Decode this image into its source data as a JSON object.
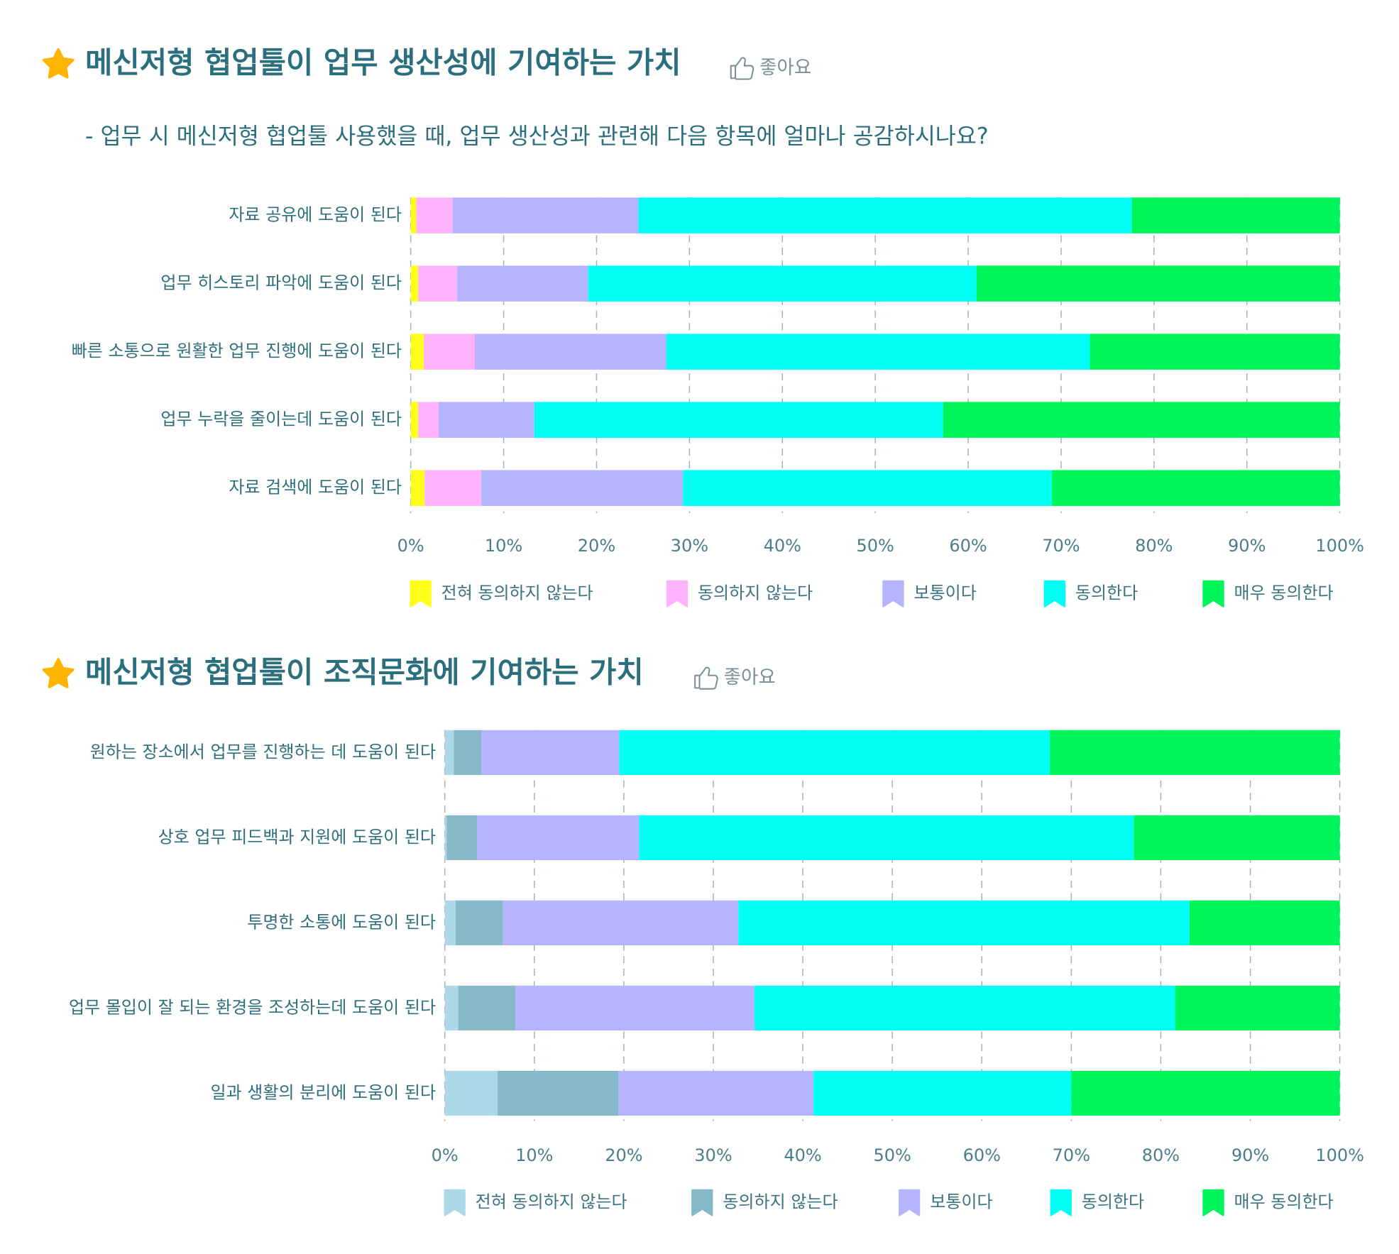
{
  "chart_data": [
    {
      "type": "stacked-bar-horizontal",
      "title": "메신저형 협업툴이 업무 생산성에 기여하는 가치",
      "badge": "좋아요",
      "subtitle": "- 업무 시 메신저형 협업툴 사용했을 때, 업무 생산성과 관련해 다음 항목에 얼마나 공감하시나요?",
      "categories": [
        "자료 공유에 도움이 된다",
        "업무 히스토리 파악에 도움이 된다",
        "빠른  소통으로 원활한 업무 진행에 도움이 된다",
        "업무 누락을 줄이는데 도움이 된다",
        "자료 검색에 도움이 된다"
      ],
      "series": [
        {
          "name": "전혀 동의하지 않는다",
          "color": "#ffff1a",
          "values": [
            0.6,
            0.8,
            1.4,
            0.8,
            1.5
          ]
        },
        {
          "name": "동의하지 않는다",
          "color": "#ffb3ff",
          "values": [
            3.9,
            4.2,
            5.5,
            2.2,
            6.1
          ]
        },
        {
          "name": "보통이다",
          "color": "#b6b3ff",
          "values": [
            20.0,
            14.1,
            20.6,
            10.3,
            21.7
          ]
        },
        {
          "name": "동의한다",
          "color": "#00fff5",
          "values": [
            53.1,
            41.8,
            45.6,
            44.0,
            39.7
          ]
        },
        {
          "name": "매우 동의한다",
          "color": "#00f55a",
          "values": [
            22.4,
            39.1,
            26.9,
            42.7,
            31.0
          ]
        }
      ],
      "xlim": [
        0,
        100
      ],
      "xticks": [
        {
          "value": 0,
          "label": "0%"
        },
        {
          "value": 10,
          "label": "10%"
        },
        {
          "value": 20,
          "label": "20%"
        },
        {
          "value": 30,
          "label": "30%"
        },
        {
          "value": 40,
          "label": "40%"
        },
        {
          "value": 50,
          "label": "50%"
        },
        {
          "value": 60,
          "label": "60%"
        },
        {
          "value": 70,
          "label": "70%"
        },
        {
          "value": 80,
          "label": "80%"
        },
        {
          "value": 90,
          "label": "90%"
        },
        {
          "value": 100,
          "label": "100%"
        }
      ],
      "grid": true
    },
    {
      "type": "stacked-bar-horizontal",
      "title": "메신저형 협업툴이 조직문화에 기여하는 가치",
      "badge": "좋아요",
      "categories": [
        "원하는 장소에서 업무를 진행하는 데 도움이 된다",
        "상호 업무 피드백과 지원에 도움이 된다",
        "투명한 소통에 도움이 된다",
        "업무 몰입이 잘 되는 환경을 조성하는데 도움이 된다",
        "일과 생활의 분리에 도움이 된다"
      ],
      "series": [
        {
          "name": "전혀 동의하지 않는다",
          "color": "#acd8e8",
          "values": [
            1.0,
            0.2,
            1.2,
            1.5,
            5.9
          ]
        },
        {
          "name": "동의하지 않는다",
          "color": "#85b8c8",
          "values": [
            3.1,
            3.4,
            5.3,
            6.4,
            13.5
          ]
        },
        {
          "name": "보통이다",
          "color": "#b6b3ff",
          "values": [
            15.4,
            18.1,
            26.3,
            26.7,
            21.8
          ]
        },
        {
          "name": "동의한다",
          "color": "#00fff5",
          "values": [
            48.1,
            55.3,
            50.4,
            47.0,
            28.8
          ]
        },
        {
          "name": "매우 동의한다",
          "color": "#00f55a",
          "values": [
            32.4,
            23.0,
            16.8,
            18.4,
            30.0
          ]
        }
      ],
      "xlim": [
        0,
        100
      ],
      "xticks": [
        {
          "value": 0,
          "label": "0%"
        },
        {
          "value": 10,
          "label": "10%"
        },
        {
          "value": 20,
          "label": "20%"
        },
        {
          "value": 30,
          "label": "30%"
        },
        {
          "value": 40,
          "label": "40%"
        },
        {
          "value": 50,
          "label": "50%"
        },
        {
          "value": 60,
          "label": "60%"
        },
        {
          "value": 70,
          "label": "70%"
        },
        {
          "value": 80,
          "label": "80%"
        },
        {
          "value": 90,
          "label": "90%"
        },
        {
          "value": 100,
          "label": "100%"
        }
      ],
      "grid": true
    }
  ]
}
